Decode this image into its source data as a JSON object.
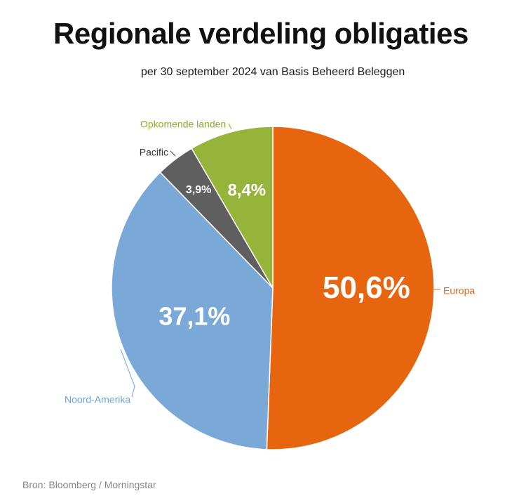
{
  "title": "Regionale verdeling obligaties",
  "subtitle": "per 30 september 2024 van Basis Beheerd Beleggen",
  "source": "Bron: Bloomberg / Morningstar",
  "chart_data": {
    "type": "pie",
    "title": "Regionale verdeling obligaties",
    "subtitle": "per 30 september 2024 van Basis Beheerd Beleggen",
    "slices": [
      {
        "name": "Europa",
        "value": 50.6,
        "label": "50,6%",
        "color": "#e8650f",
        "label_color": "#e8650f"
      },
      {
        "name": "Noord-Amerika",
        "value": 37.1,
        "label": "37,1%",
        "color": "#7ba9d7",
        "label_color": "#6ea3d6"
      },
      {
        "name": "Pacific",
        "value": 3.9,
        "label": "3,9%",
        "color": "#5f5f5f",
        "label_color": "#333333"
      },
      {
        "name": "Opkomende landen",
        "value": 8.4,
        "label": "8,4%",
        "color": "#96b43a",
        "label_color": "#8aad2e"
      }
    ]
  }
}
